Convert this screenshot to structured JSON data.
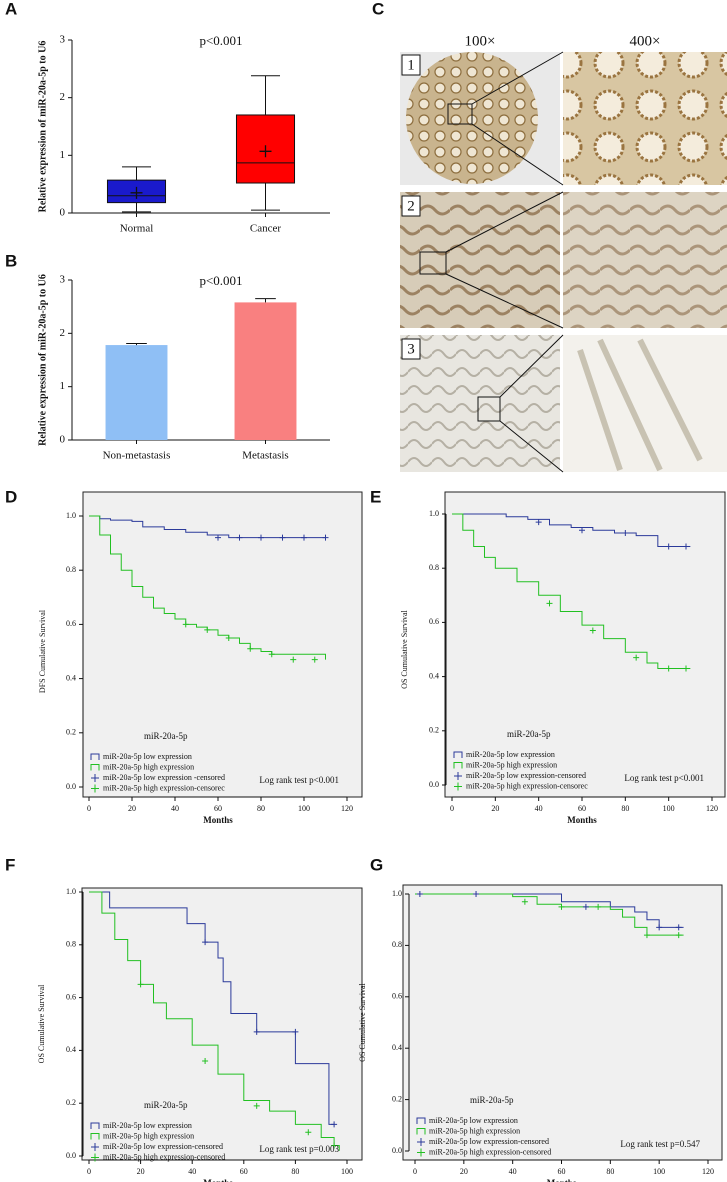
{
  "chart_data": [
    {
      "type": "box",
      "panel": "A",
      "annotation": "p<0.001",
      "y_label": "Relative expression of miR-20a-5p to U6",
      "categories": [
        "Normal",
        "Cancer"
      ],
      "colors": [
        "#1a1acc",
        "#ff0000"
      ],
      "boxes": [
        {
          "min": 0.02,
          "q1": 0.18,
          "median": 0.3,
          "q3": 0.57,
          "max": 0.8,
          "mean": 0.35
        },
        {
          "min": 0.05,
          "q1": 0.52,
          "median": 0.87,
          "q3": 1.7,
          "max": 2.38,
          "mean": 1.07
        }
      ],
      "ylim": [
        0,
        3
      ],
      "yticks": [
        0,
        1,
        2,
        3
      ]
    },
    {
      "type": "bar",
      "panel": "B",
      "annotation": "p<0.001",
      "y_label": "Relative expression of miR-20a-5p to U6",
      "categories": [
        "Non-metastasis",
        "Metastasis"
      ],
      "colors": [
        "#8fbff5",
        "#f98080"
      ],
      "values": [
        1.78,
        2.58
      ],
      "errors": [
        0.03,
        0.07
      ],
      "ylim": [
        0,
        3
      ],
      "yticks": [
        0,
        1,
        2,
        3
      ]
    },
    {
      "type": "step",
      "panel": "D",
      "y_label": "DFS Cumulative Survival",
      "x_label": "Months",
      "legend_title": "miR-20a-5p",
      "annotation": "Log rank test p<0.001",
      "xlim": [
        0,
        120
      ],
      "xticks": [
        0,
        20,
        40,
        60,
        80,
        100,
        120
      ],
      "ylim": [
        0,
        1
      ],
      "yticks": [
        {
          "value": 0,
          "label": "0.0"
        },
        {
          "value": 0.2,
          "label": "0.2"
        },
        {
          "value": 0.4,
          "label": "0.4"
        },
        {
          "value": 0.6,
          "label": "0.6"
        },
        {
          "value": 0.8,
          "label": "0.8"
        },
        {
          "value": 1,
          "label": "1.0"
        }
      ],
      "series": [
        {
          "name": "miR-20a-5p low expression",
          "color": "#2b3a9a",
          "censored": false,
          "x": [
            0,
            5,
            10,
            20,
            25,
            35,
            45,
            55,
            65,
            110
          ],
          "values": [
            1,
            0.99,
            0.985,
            0.98,
            0.96,
            0.95,
            0.94,
            0.93,
            0.92,
            0.92
          ]
        },
        {
          "name": "miR-20a-5p high expression",
          "color": "#22c022",
          "censored": false,
          "x": [
            0,
            5,
            10,
            15,
            20,
            25,
            30,
            35,
            40,
            45,
            50,
            55,
            60,
            65,
            70,
            75,
            80,
            85,
            90,
            110
          ],
          "values": [
            1,
            0.93,
            0.86,
            0.8,
            0.74,
            0.7,
            0.66,
            0.64,
            0.62,
            0.6,
            0.59,
            0.58,
            0.56,
            0.55,
            0.53,
            0.51,
            0.5,
            0.49,
            0.49,
            0.47
          ]
        },
        {
          "name": "miR-20a-5p low expression -censored",
          "color": "#2b3a9a",
          "censored": true,
          "x": [
            60,
            70,
            80,
            90,
            100,
            110
          ],
          "values": [
            0.92,
            0.92,
            0.92,
            0.92,
            0.92,
            0.92
          ]
        },
        {
          "name": "miR-20a-5p high expression-censorec",
          "color": "#22c022",
          "censored": true,
          "x": [
            45,
            55,
            65,
            75,
            85,
            95,
            105
          ],
          "values": [
            0.6,
            0.58,
            0.55,
            0.51,
            0.49,
            0.47,
            0.47
          ]
        }
      ]
    },
    {
      "type": "step",
      "panel": "E",
      "y_label": "OS Cumulative Survival",
      "x_label": "Months",
      "legend_title": "miR-20a-5p",
      "annotation": "Log rank test p<0.001",
      "xlim": [
        0,
        120
      ],
      "xticks": [
        0,
        20,
        40,
        60,
        80,
        100,
        120
      ],
      "ylim": [
        0,
        1
      ],
      "yticks": [
        {
          "value": 0,
          "label": "0.0"
        },
        {
          "value": 0.2,
          "label": "0.2"
        },
        {
          "value": 0.4,
          "label": "0.4"
        },
        {
          "value": 0.6,
          "label": "0.6"
        },
        {
          "value": 0.8,
          "label": "0.8"
        },
        {
          "value": 1,
          "label": "1.0"
        }
      ],
      "series": [
        {
          "name": "miR-20a-5p low expression",
          "color": "#2b3a9a",
          "censored": false,
          "x": [
            0,
            25,
            35,
            45,
            55,
            65,
            75,
            85,
            95,
            110
          ],
          "values": [
            1,
            0.99,
            0.98,
            0.96,
            0.95,
            0.94,
            0.93,
            0.92,
            0.88,
            0.88
          ]
        },
        {
          "name": "miR-20a-5p high expression",
          "color": "#22c022",
          "censored": false,
          "x": [
            0,
            5,
            10,
            15,
            20,
            30,
            40,
            50,
            60,
            70,
            80,
            90,
            95,
            110
          ],
          "values": [
            1,
            0.94,
            0.88,
            0.84,
            0.8,
            0.75,
            0.7,
            0.64,
            0.59,
            0.54,
            0.49,
            0.45,
            0.43,
            0.43
          ]
        },
        {
          "name": "miR-20a-5p low expression-censored",
          "color": "#2b3a9a",
          "censored": true,
          "x": [
            40,
            60,
            80,
            100,
            108
          ],
          "values": [
            0.97,
            0.94,
            0.93,
            0.88,
            0.88
          ]
        },
        {
          "name": "miR-20a-5p high expression-censorec",
          "color": "#22c022",
          "censored": true,
          "x": [
            45,
            65,
            85,
            100,
            108
          ],
          "values": [
            0.67,
            0.57,
            0.47,
            0.43,
            0.43
          ]
        }
      ]
    },
    {
      "type": "step",
      "panel": "F",
      "y_label": "OS Cumulative Survival",
      "x_label": "Months",
      "legend_title": "miR-20a-5p",
      "annotation": "Log rank test p=0.003",
      "xlim": [
        0,
        100
      ],
      "xticks": [
        0,
        20,
        40,
        60,
        80,
        100
      ],
      "ylim": [
        0,
        1
      ],
      "yticks": [
        {
          "value": 0,
          "label": "0.0"
        },
        {
          "value": 0.2,
          "label": "0.2"
        },
        {
          "value": 0.4,
          "label": "0.4"
        },
        {
          "value": 0.6,
          "label": "0.6"
        },
        {
          "value": 0.8,
          "label": "0.8"
        },
        {
          "value": 1,
          "label": "1.0"
        }
      ],
      "series": [
        {
          "name": "miR-20a-5p low expression",
          "color": "#2b3a9a",
          "censored": false,
          "x": [
            0,
            8,
            38,
            45,
            50,
            52,
            55,
            65,
            80,
            93,
            95
          ],
          "values": [
            1,
            0.94,
            0.88,
            0.81,
            0.75,
            0.66,
            0.54,
            0.47,
            0.35,
            0.12,
            0.12
          ]
        },
        {
          "name": "miR-20a-5p high expression",
          "color": "#22c022",
          "censored": false,
          "x": [
            0,
            5,
            10,
            15,
            20,
            25,
            30,
            40,
            50,
            60,
            70,
            80,
            90,
            95,
            97
          ],
          "values": [
            1,
            0.92,
            0.82,
            0.74,
            0.65,
            0.58,
            0.52,
            0.42,
            0.31,
            0.21,
            0.17,
            0.12,
            0.07,
            0.04,
            0.02
          ]
        },
        {
          "name": "miR-20a-5p low expression-censored",
          "color": "#2b3a9a",
          "censored": true,
          "x": [
            45,
            65,
            80,
            95
          ],
          "values": [
            0.81,
            0.47,
            0.47,
            0.12
          ]
        },
        {
          "name": "miR-20a-5p high expression-censored",
          "color": "#22c022",
          "censored": true,
          "x": [
            20,
            45,
            65,
            85,
            95
          ],
          "values": [
            0.65,
            0.36,
            0.19,
            0.09,
            0.04
          ]
        }
      ]
    },
    {
      "type": "step",
      "panel": "G",
      "y_label": "OS Cumulative Survival",
      "x_label": "Months",
      "legend_title": "miR-20a-5p",
      "annotation": "Log rank test  p=0.547",
      "xlim": [
        0,
        120
      ],
      "xticks": [
        0,
        20,
        40,
        60,
        80,
        100,
        120
      ],
      "ylim": [
        0,
        1
      ],
      "yticks": [
        {
          "value": 0,
          "label": "0.0"
        },
        {
          "value": 0.2,
          "label": "0.2"
        },
        {
          "value": 0.4,
          "label": "0.4"
        },
        {
          "value": 0.6,
          "label": "0.6"
        },
        {
          "value": 0.8,
          "label": "0.8"
        },
        {
          "value": 1,
          "label": "1.0"
        }
      ],
      "series": [
        {
          "name": "miR-20a-5p low expression",
          "color": "#2b3a9a",
          "censored": false,
          "x": [
            0,
            40,
            60,
            80,
            90,
            95,
            100,
            110
          ],
          "values": [
            1,
            1,
            0.97,
            0.95,
            0.93,
            0.9,
            0.87,
            0.87
          ]
        },
        {
          "name": "miR-20a-5p high expression",
          "color": "#22c022",
          "censored": false,
          "x": [
            0,
            40,
            50,
            60,
            80,
            85,
            90,
            95,
            110
          ],
          "values": [
            1,
            0.99,
            0.96,
            0.95,
            0.94,
            0.91,
            0.87,
            0.84,
            0.84
          ]
        },
        {
          "name": "miR-20a-5p low expression-censored",
          "color": "#2b3a9a",
          "censored": true,
          "x": [
            2,
            25,
            70,
            100,
            108
          ],
          "values": [
            1,
            1,
            0.95,
            0.87,
            0.87
          ]
        },
        {
          "name": "miR-20a-5p high expression-censored",
          "color": "#22c022",
          "censored": true,
          "x": [
            45,
            60,
            75,
            95,
            108
          ],
          "values": [
            0.97,
            0.95,
            0.95,
            0.84,
            0.84
          ]
        }
      ]
    }
  ],
  "panel_c": {
    "label": "C",
    "columns": [
      "100×",
      "400×"
    ],
    "rows": [
      "1",
      "2",
      "3"
    ]
  }
}
